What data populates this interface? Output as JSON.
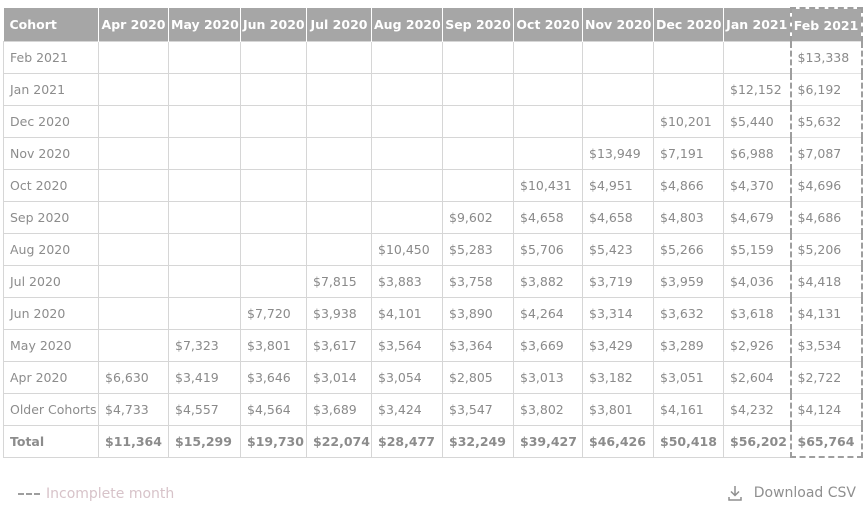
{
  "table": {
    "columns": [
      "Cohort",
      "Apr 2020",
      "May 2020",
      "Jun 2020",
      "Jul 2020",
      "Aug 2020",
      "Sep 2020",
      "Oct 2020",
      "Nov 2020",
      "Dec 2020",
      "Jan 2021",
      "Feb 2021"
    ],
    "rows": [
      [
        "Feb 2021",
        "",
        "",
        "",
        "",
        "",
        "",
        "",
        "",
        "",
        "",
        "$13,338"
      ],
      [
        "Jan 2021",
        "",
        "",
        "",
        "",
        "",
        "",
        "",
        "",
        "",
        "$12,152",
        "$6,192"
      ],
      [
        "Dec 2020",
        "",
        "",
        "",
        "",
        "",
        "",
        "",
        "",
        "$10,201",
        "$5,440",
        "$5,632"
      ],
      [
        "Nov 2020",
        "",
        "",
        "",
        "",
        "",
        "",
        "",
        "$13,949",
        "$7,191",
        "$6,988",
        "$7,087"
      ],
      [
        "Oct 2020",
        "",
        "",
        "",
        "",
        "",
        "",
        "$10,431",
        "$4,951",
        "$4,866",
        "$4,370",
        "$4,696"
      ],
      [
        "Sep 2020",
        "",
        "",
        "",
        "",
        "",
        "$9,602",
        "$4,658",
        "$4,658",
        "$4,803",
        "$4,679",
        "$4,686"
      ],
      [
        "Aug 2020",
        "",
        "",
        "",
        "",
        "$10,450",
        "$5,283",
        "$5,706",
        "$5,423",
        "$5,266",
        "$5,159",
        "$5,206"
      ],
      [
        "Jul 2020",
        "",
        "",
        "",
        "$7,815",
        "$3,883",
        "$3,758",
        "$3,882",
        "$3,719",
        "$3,959",
        "$4,036",
        "$4,418"
      ],
      [
        "Jun 2020",
        "",
        "",
        "$7,720",
        "$3,938",
        "$4,101",
        "$3,890",
        "$4,264",
        "$3,314",
        "$3,632",
        "$3,618",
        "$4,131"
      ],
      [
        "May 2020",
        "",
        "$7,323",
        "$3,801",
        "$3,617",
        "$3,564",
        "$3,364",
        "$3,669",
        "$3,429",
        "$3,289",
        "$2,926",
        "$3,534"
      ],
      [
        "Apr 2020",
        "$6,630",
        "$3,419",
        "$3,646",
        "$3,014",
        "$3,054",
        "$2,805",
        "$3,013",
        "$3,182",
        "$3,051",
        "$2,604",
        "$2,722"
      ],
      [
        "Older Cohorts",
        "$4,733",
        "$4,557",
        "$4,564",
        "$3,689",
        "$3,424",
        "$3,547",
        "$3,802",
        "$3,801",
        "$4,161",
        "$4,232",
        "$4,124"
      ]
    ],
    "total": [
      "Total",
      "$11,364",
      "$15,299",
      "$19,730",
      "$22,074",
      "$28,477",
      "$32,249",
      "$39,427",
      "$46,426",
      "$50,418",
      "$56,202",
      "$65,764"
    ]
  },
  "legend": {
    "label": "Incomplete month"
  },
  "download": {
    "label": "Download CSV"
  },
  "colors": {
    "header_bg": "#a6a6a6",
    "header_text": "#ffffff",
    "cell_text": "#8a8a8a",
    "legend_text": "#d7c3c9",
    "dashed_border": "#9e9e9e"
  }
}
